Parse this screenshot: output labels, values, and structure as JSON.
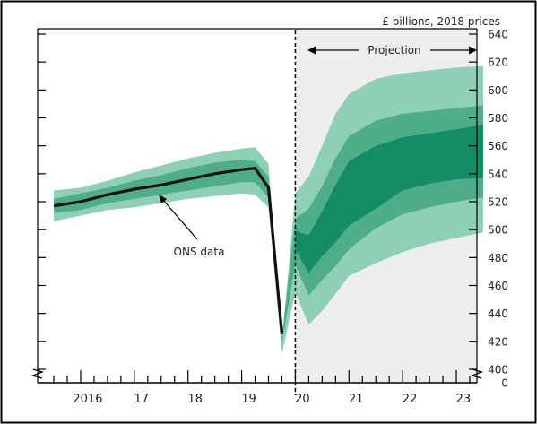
{
  "chart_data": {
    "type": "area",
    "units_label": "£ billions, 2018 prices",
    "projection_label": "Projection",
    "annotation": "ONS data",
    "x_ticks": [
      {
        "x": 2016.0,
        "label": "2016"
      },
      {
        "x": 2017.0,
        "label": "17"
      },
      {
        "x": 2018.0,
        "label": "18"
      },
      {
        "x": 2019.0,
        "label": "19"
      },
      {
        "x": 2020.0,
        "label": "20"
      },
      {
        "x": 2021.0,
        "label": "21"
      },
      {
        "x": 2022.0,
        "label": "22"
      },
      {
        "x": 2023.0,
        "label": "23"
      }
    ],
    "y_ticks": [
      640,
      620,
      600,
      580,
      560,
      540,
      520,
      500,
      480,
      460,
      440,
      420,
      400,
      0
    ],
    "ylim": [
      400,
      640
    ],
    "axis_break": true,
    "projection_start": 2020.0,
    "colors": {
      "band_outer": "#8fd0b4",
      "band_middle": "#4fad88",
      "band_inner": "#148c66",
      "central_line": "#111111",
      "projection_bg": "#eeeeee"
    },
    "bands": [
      {
        "name": "outer",
        "x": [
          2015.5,
          2016.0,
          2016.5,
          2017.0,
          2017.5,
          2018.0,
          2018.5,
          2019.0,
          2019.25,
          2019.5,
          2019.75,
          2020.0,
          2020.25,
          2020.5,
          2020.75,
          2021.0,
          2021.5,
          2022.0,
          2022.5,
          2023.0,
          2023.5
        ],
        "upper": [
          528,
          530,
          535,
          541,
          546,
          551,
          555,
          558,
          559,
          547,
          420,
          526,
          538,
          560,
          583,
          597,
          608,
          612,
          614,
          616,
          617
        ],
        "lower": [
          506,
          510,
          514,
          516,
          519,
          522,
          524,
          526,
          525,
          516,
          411,
          455,
          432,
          442,
          454,
          467,
          476,
          484,
          490,
          494,
          498
        ]
      },
      {
        "name": "middle",
        "x": [
          2015.5,
          2016.0,
          2016.5,
          2017.0,
          2017.5,
          2018.0,
          2018.5,
          2019.0,
          2019.25,
          2019.5,
          2019.75,
          2020.0,
          2020.25,
          2020.5,
          2020.75,
          2021.0,
          2021.5,
          2022.0,
          2022.5,
          2023.0,
          2023.5
        ],
        "upper": [
          522,
          526,
          530,
          535,
          539,
          544,
          548,
          550,
          549,
          538,
          423,
          508,
          515,
          531,
          551,
          567,
          578,
          583,
          585,
          587,
          589
        ],
        "lower": [
          512,
          514,
          519,
          522,
          525,
          528,
          531,
          534,
          534,
          523,
          419,
          475,
          453,
          464,
          474,
          486,
          501,
          511,
          516,
          520,
          523
        ]
      },
      {
        "name": "inner",
        "x": [
          2020.0,
          2020.25,
          2020.5,
          2020.75,
          2021.0,
          2021.5,
          2022.0,
          2022.5,
          2023.0,
          2023.5
        ],
        "upper": [
          499,
          496,
          513,
          532,
          549,
          560,
          566,
          569,
          572,
          575
        ],
        "lower": [
          486,
          469,
          481,
          491,
          503,
          515,
          528,
          533,
          536,
          537
        ]
      }
    ],
    "central_line": {
      "x": [
        2015.5,
        2016.0,
        2016.5,
        2017.0,
        2017.5,
        2018.0,
        2018.5,
        2019.0,
        2019.25,
        2019.5,
        2019.75
      ],
      "y": [
        517,
        520,
        525,
        529,
        532,
        536,
        540,
        543,
        544,
        530,
        425
      ]
    }
  }
}
